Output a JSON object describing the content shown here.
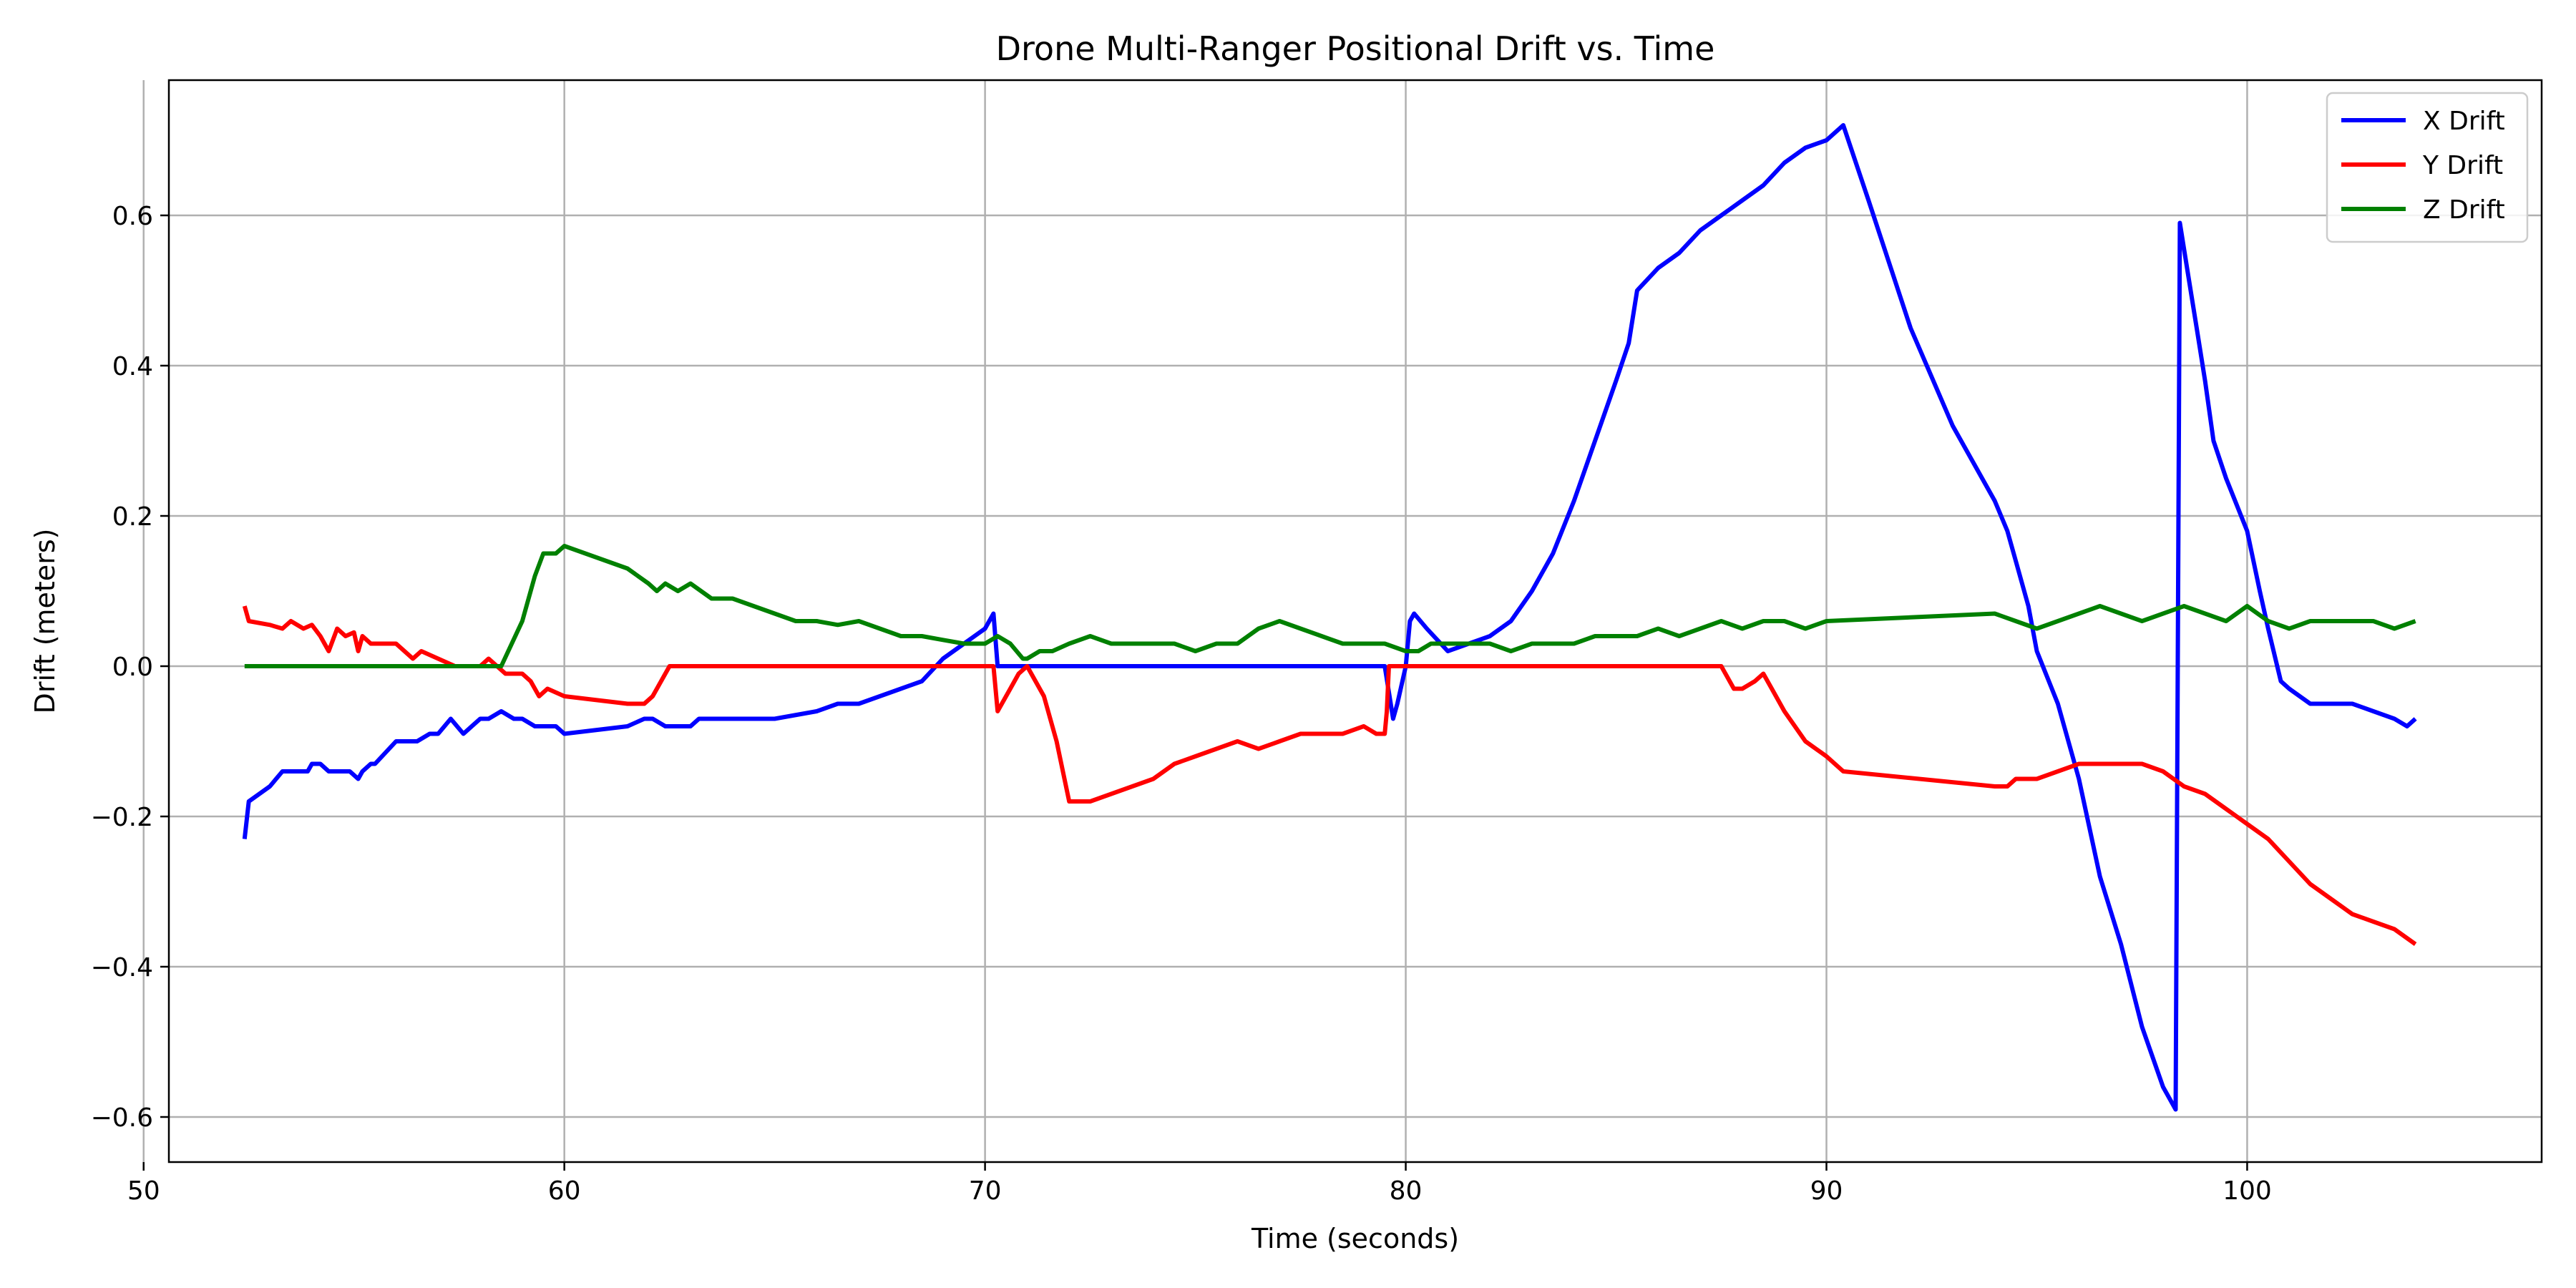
{
  "chart_data": {
    "type": "line",
    "title": "Drone Multi-Ranger Positional Drift vs. Time",
    "xlabel": "Time (seconds)",
    "ylabel": "Drift (meters)",
    "xlim": [
      50.6,
      107
    ],
    "ylim": [
      -0.66,
      0.78
    ],
    "xticks": [
      50,
      60,
      70,
      80,
      90,
      100
    ],
    "yticks": [
      -0.6,
      -0.4,
      -0.2,
      0.0,
      0.2,
      0.4,
      0.6
    ],
    "ytick_labels": [
      "−0.6",
      "−0.4",
      "−0.2",
      "0.0",
      "0.2",
      "0.4",
      "0.6"
    ],
    "grid": true,
    "legend_position": "upper right",
    "series": [
      {
        "name": "X Drift",
        "color": "#0000ff",
        "x": [
          52.4,
          52.5,
          53.0,
          53.3,
          53.5,
          53.9,
          54.0,
          54.2,
          54.4,
          54.5,
          54.9,
          55.1,
          55.2,
          55.4,
          55.5,
          56.0,
          56.5,
          56.8,
          57.0,
          57.3,
          57.6,
          57.8,
          58.0,
          58.2,
          58.5,
          58.8,
          59.0,
          59.3,
          59.8,
          60.0,
          61.5,
          61.9,
          62.1,
          62.4,
          62.6,
          63.0,
          63.2,
          63.6,
          64.0,
          65.0,
          66.0,
          66.5,
          67.0,
          67.5,
          68.0,
          68.5,
          69.0,
          69.5,
          70.0,
          70.2,
          70.3,
          71.0,
          75.0,
          79.5,
          79.7,
          79.8,
          80.0,
          80.1,
          80.2,
          80.5,
          81.0,
          81.5,
          82.0,
          82.5,
          83.0,
          83.5,
          84.0,
          84.5,
          85.0,
          85.3,
          85.5,
          86.0,
          86.5,
          87.0,
          87.5,
          88.0,
          88.5,
          89.0,
          89.5,
          90.0,
          90.4,
          91.0,
          92.0,
          93.0,
          94.0,
          94.3,
          94.5,
          94.8,
          95.0,
          95.5,
          96.0,
          96.5,
          97.0,
          97.5,
          98.0,
          98.3,
          98.4,
          98.6,
          98.8,
          99.0,
          99.2,
          99.5,
          100.0,
          100.3,
          100.5,
          100.8,
          101.0,
          101.5,
          102.0,
          102.5,
          103.0,
          103.5,
          103.8,
          104.0
        ],
        "y": [
          -0.23,
          -0.18,
          -0.16,
          -0.14,
          -0.14,
          -0.14,
          -0.13,
          -0.13,
          -0.14,
          -0.14,
          -0.14,
          -0.15,
          -0.14,
          -0.13,
          -0.13,
          -0.1,
          -0.1,
          -0.09,
          -0.09,
          -0.07,
          -0.09,
          -0.08,
          -0.07,
          -0.07,
          -0.06,
          -0.07,
          -0.07,
          -0.08,
          -0.08,
          -0.09,
          -0.08,
          -0.07,
          -0.07,
          -0.08,
          -0.08,
          -0.08,
          -0.07,
          -0.07,
          -0.07,
          -0.07,
          -0.06,
          -0.05,
          -0.05,
          -0.04,
          -0.03,
          -0.02,
          0.01,
          0.03,
          0.05,
          0.07,
          0.0,
          0.0,
          0.0,
          0.0,
          -0.07,
          -0.05,
          0.0,
          0.06,
          0.07,
          0.05,
          0.02,
          0.03,
          0.04,
          0.06,
          0.1,
          0.15,
          0.22,
          0.3,
          0.38,
          0.43,
          0.5,
          0.53,
          0.55,
          0.58,
          0.6,
          0.62,
          0.64,
          0.67,
          0.69,
          0.7,
          0.72,
          0.62,
          0.45,
          0.32,
          0.22,
          0.18,
          0.14,
          0.08,
          0.02,
          -0.05,
          -0.15,
          -0.28,
          -0.37,
          -0.48,
          -0.56,
          -0.59,
          0.59,
          0.52,
          0.45,
          0.38,
          0.3,
          0.25,
          0.18,
          0.1,
          0.05,
          -0.02,
          -0.03,
          -0.05,
          -0.05,
          -0.05,
          -0.06,
          -0.07,
          -0.08,
          -0.07
        ]
      },
      {
        "name": "Y Drift",
        "color": "#ff0000",
        "x": [
          52.4,
          52.5,
          53.0,
          53.3,
          53.5,
          53.8,
          54.0,
          54.2,
          54.4,
          54.6,
          54.8,
          55.0,
          55.1,
          55.2,
          55.4,
          55.6,
          56.0,
          56.4,
          56.6,
          57.0,
          57.4,
          57.8,
          58.0,
          58.2,
          58.4,
          58.6,
          58.8,
          59.0,
          59.2,
          59.4,
          59.6,
          60.0,
          61.5,
          61.9,
          62.1,
          62.3,
          62.5,
          65.0,
          70.0,
          70.2,
          70.3,
          70.6,
          70.8,
          71.0,
          71.4,
          71.7,
          72.0,
          72.5,
          73.0,
          73.5,
          74.0,
          74.5,
          75.0,
          75.5,
          76.0,
          76.5,
          77.0,
          77.5,
          78.0,
          78.5,
          79.0,
          79.3,
          79.5,
          79.55,
          79.6,
          80.0,
          85.0,
          87.5,
          87.8,
          88.0,
          88.3,
          88.5,
          88.7,
          89.0,
          89.5,
          90.0,
          90.4,
          94.0,
          94.3,
          94.5,
          95.0,
          95.5,
          96.0,
          96.5,
          97.0,
          97.5,
          98.0,
          98.5,
          99.0,
          99.5,
          100.0,
          100.5,
          101.0,
          101.5,
          102.0,
          102.5,
          103.0,
          103.5,
          104.0
        ],
        "y": [
          0.08,
          0.06,
          0.055,
          0.05,
          0.06,
          0.05,
          0.055,
          0.04,
          0.02,
          0.05,
          0.04,
          0.045,
          0.02,
          0.04,
          0.03,
          0.03,
          0.03,
          0.01,
          0.02,
          0.01,
          0.0,
          0.0,
          0.0,
          0.01,
          0.0,
          -0.01,
          -0.01,
          -0.01,
          -0.02,
          -0.04,
          -0.03,
          -0.04,
          -0.05,
          -0.05,
          -0.04,
          -0.02,
          0.0,
          0.0,
          0.0,
          0.0,
          -0.06,
          -0.03,
          -0.01,
          0.0,
          -0.04,
          -0.1,
          -0.18,
          -0.18,
          -0.17,
          -0.16,
          -0.15,
          -0.13,
          -0.12,
          -0.11,
          -0.1,
          -0.11,
          -0.1,
          -0.09,
          -0.09,
          -0.09,
          -0.08,
          -0.09,
          -0.09,
          -0.06,
          0.0,
          0.0,
          0.0,
          0.0,
          -0.03,
          -0.03,
          -0.02,
          -0.01,
          -0.03,
          -0.06,
          -0.1,
          -0.12,
          -0.14,
          -0.16,
          -0.16,
          -0.15,
          -0.15,
          -0.14,
          -0.13,
          -0.13,
          -0.13,
          -0.13,
          -0.14,
          -0.16,
          -0.17,
          -0.19,
          -0.21,
          -0.23,
          -0.26,
          -0.29,
          -0.31,
          -0.33,
          -0.34,
          -0.35,
          -0.37
        ]
      },
      {
        "name": "Z Drift",
        "color": "#008000",
        "x": [
          52.4,
          55.0,
          58.5,
          59.0,
          59.3,
          59.5,
          59.8,
          60.0,
          61.5,
          62.0,
          62.2,
          62.4,
          62.7,
          63.0,
          63.5,
          64.0,
          64.5,
          65.0,
          65.5,
          66.0,
          66.5,
          67.0,
          67.5,
          68.0,
          68.5,
          69.0,
          69.5,
          70.0,
          70.3,
          70.6,
          70.9,
          71.0,
          71.3,
          71.6,
          72.0,
          72.5,
          73.0,
          73.5,
          74.0,
          74.5,
          75.0,
          75.5,
          76.0,
          76.5,
          77.0,
          77.5,
          78.0,
          78.5,
          79.0,
          79.5,
          80.0,
          80.3,
          80.6,
          81.0,
          81.5,
          82.0,
          82.5,
          83.0,
          83.5,
          84.0,
          84.5,
          85.0,
          85.5,
          86.0,
          86.5,
          87.0,
          87.5,
          88.0,
          88.5,
          89.0,
          89.5,
          90.0,
          94.0,
          94.5,
          95.0,
          95.5,
          96.0,
          96.5,
          97.0,
          97.5,
          98.0,
          98.5,
          99.0,
          99.5,
          100.0,
          100.5,
          101.0,
          101.5,
          102.0,
          102.5,
          103.0,
          103.5,
          104.0
        ],
        "y": [
          0.0,
          0.0,
          0.0,
          0.06,
          0.12,
          0.15,
          0.15,
          0.16,
          0.13,
          0.11,
          0.1,
          0.11,
          0.1,
          0.11,
          0.09,
          0.09,
          0.08,
          0.07,
          0.06,
          0.06,
          0.055,
          0.06,
          0.05,
          0.04,
          0.04,
          0.035,
          0.03,
          0.03,
          0.04,
          0.03,
          0.01,
          0.01,
          0.02,
          0.02,
          0.03,
          0.04,
          0.03,
          0.03,
          0.03,
          0.03,
          0.02,
          0.03,
          0.03,
          0.05,
          0.06,
          0.05,
          0.04,
          0.03,
          0.03,
          0.03,
          0.02,
          0.02,
          0.03,
          0.03,
          0.03,
          0.03,
          0.02,
          0.03,
          0.03,
          0.03,
          0.04,
          0.04,
          0.04,
          0.05,
          0.04,
          0.05,
          0.06,
          0.05,
          0.06,
          0.06,
          0.05,
          0.06,
          0.07,
          0.06,
          0.05,
          0.06,
          0.07,
          0.08,
          0.07,
          0.06,
          0.07,
          0.08,
          0.07,
          0.06,
          0.08,
          0.06,
          0.05,
          0.06,
          0.06,
          0.06,
          0.06,
          0.05,
          0.06
        ]
      }
    ]
  }
}
